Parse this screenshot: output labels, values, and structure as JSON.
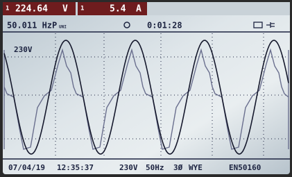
{
  "status_bar": {
    "voltage": {
      "channel": "1",
      "value": "224.64",
      "unit": "V"
    },
    "current": {
      "channel": "1",
      "value": "5.4",
      "unit": "A"
    }
  },
  "header": {
    "frequency": "50.011 HzP",
    "frequency_suffix": "UNI",
    "timer": "0:01:28"
  },
  "plot": {
    "scale_label": "230V"
  },
  "footer": {
    "date": "07/04/19",
    "time": "12:35:37",
    "nominal_voltage": "230V",
    "nominal_frequency": "50Hz",
    "phase_count": "3Ø",
    "configuration": "WYE",
    "standard": "EN50160"
  }
}
